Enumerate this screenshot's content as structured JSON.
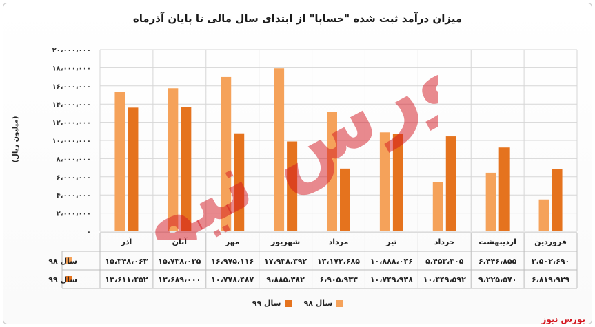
{
  "colors": {
    "s98": "#f5a25a",
    "s99": "#e5731e",
    "brand": "#d4161f"
  },
  "watermark_text": "بورس نیوز",
  "chart_data": {
    "type": "bar",
    "title": "میزان درآمد ثبت شده \"خساپا\" از ابتدای سال مالی تا پایان آذرماه",
    "ylabel": "(میلیون ریال)",
    "ylim": [
      0,
      20000000
    ],
    "yticks": [
      0,
      2000000,
      4000000,
      6000000,
      8000000,
      10000000,
      12000000,
      14000000,
      16000000,
      18000000,
      20000000
    ],
    "ytick_labels": [
      "۰",
      "۲،۰۰۰،۰۰۰",
      "۴،۰۰۰،۰۰۰",
      "۶،۰۰۰،۰۰۰",
      "۸،۰۰۰،۰۰۰",
      "۱۰،۰۰۰،۰۰۰",
      "۱۲،۰۰۰،۰۰۰",
      "۱۴،۰۰۰،۰۰۰",
      "۱۶،۰۰۰،۰۰۰",
      "۱۸،۰۰۰،۰۰۰",
      "۲۰،۰۰۰،۰۰۰"
    ],
    "grid": true,
    "categories": [
      "فروردین",
      "اردیبهشت",
      "خرداد",
      "تیر",
      "مرداد",
      "شهریور",
      "مهر",
      "آبان",
      "آذر"
    ],
    "series": [
      {
        "name": "سال ۹۸",
        "values": [
          3502690,
          6446855,
          5453305,
          10888036,
          13172685,
          17938392,
          16975116,
          15738035,
          15348063
        ],
        "labels": [
          "۳،۵۰۲،۶۹۰",
          "۶،۴۴۶،۸۵۵",
          "۵،۴۵۳،۳۰۵",
          "۱۰،۸۸۸،۰۳۶",
          "۱۳،۱۷۲،۶۸۵",
          "۱۷،۹۳۸،۳۹۲",
          "۱۶،۹۷۵،۱۱۶",
          "۱۵،۷۳۸،۰۳۵",
          "۱۵،۳۴۸،۰۶۳"
        ]
      },
      {
        "name": "سال ۹۹",
        "values": [
          6819939,
          9225570,
          10449592,
          10749938,
          6905933,
          9885382,
          10778487,
          13689000,
          13611452
        ],
        "labels": [
          "۶،۸۱۹،۹۳۹",
          "۹،۲۲۵،۵۷۰",
          "۱۰،۴۴۹،۵۹۲",
          "۱۰،۷۴۹،۹۳۸",
          "۶،۹۰۵،۹۳۳",
          "۹،۸۸۵،۳۸۲",
          "۱۰،۷۷۸،۴۸۷",
          "۱۳،۶۸۹،۰۰۰",
          "۱۳،۶۱۱،۴۵۲"
        ]
      }
    ],
    "legend_position": "bottom"
  },
  "brand_label": "بورس نیوز"
}
